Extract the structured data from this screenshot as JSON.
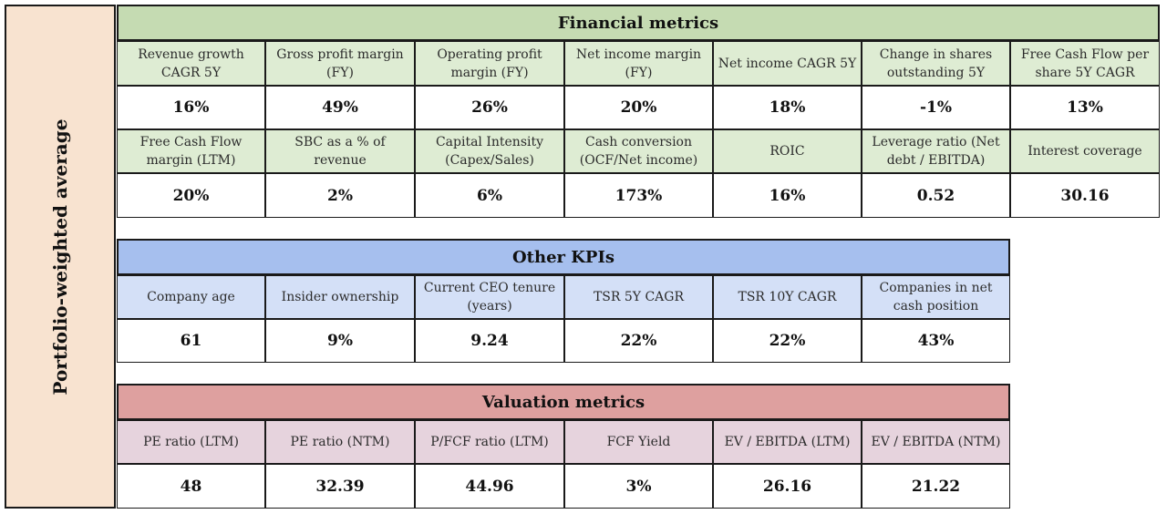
{
  "side_label": "Portfolio-weighted average",
  "colors": {
    "side_bg": "#f8e3d0",
    "financial_header": "#c5dbb2",
    "financial_label": "#deecd3",
    "other_header": "#a6bfee",
    "other_label": "#d4e0f7",
    "valuation_header": "#dea09f",
    "valuation_label": "#e6d3dd"
  },
  "financial": {
    "title": "Financial metrics",
    "rows": [
      {
        "labels": [
          "Revenue growth CAGR 5Y",
          "Gross profit margin (FY)",
          "Operating profit margin (FY)",
          "Net income margin (FY)",
          "Net income CAGR 5Y",
          "Change in shares outstanding 5Y",
          "Free Cash Flow per share 5Y CAGR"
        ],
        "values": [
          "16%",
          "49%",
          "26%",
          "20%",
          "18%",
          "-1%",
          "13%"
        ]
      },
      {
        "labels": [
          "Free Cash Flow margin (LTM)",
          "SBC as a % of revenue",
          "Capital Intensity (Capex/Sales)",
          "Cash conversion (OCF/Net income)",
          "ROIC",
          "Leverage ratio (Net debt / EBITDA)",
          "Interest coverage"
        ],
        "values": [
          "20%",
          "2%",
          "6%",
          "173%",
          "16%",
          "0.52",
          "30.16"
        ]
      }
    ]
  },
  "other": {
    "title": "Other KPIs",
    "labels": [
      "Company age",
      "Insider ownership",
      "Current CEO tenure (years)",
      "TSR 5Y CAGR",
      "TSR 10Y CAGR",
      "Companies in net cash position"
    ],
    "values": [
      "61",
      "9%",
      "9.24",
      "22%",
      "22%",
      "43%"
    ]
  },
  "valuation": {
    "title": "Valuation metrics",
    "labels": [
      "PE ratio (LTM)",
      "PE ratio (NTM)",
      "P/FCF ratio (LTM)",
      "FCF Yield",
      "EV / EBITDA (LTM)",
      "EV / EBITDA (NTM)"
    ],
    "values": [
      "48",
      "32.39",
      "44.96",
      "3%",
      "26.16",
      "21.22"
    ]
  }
}
